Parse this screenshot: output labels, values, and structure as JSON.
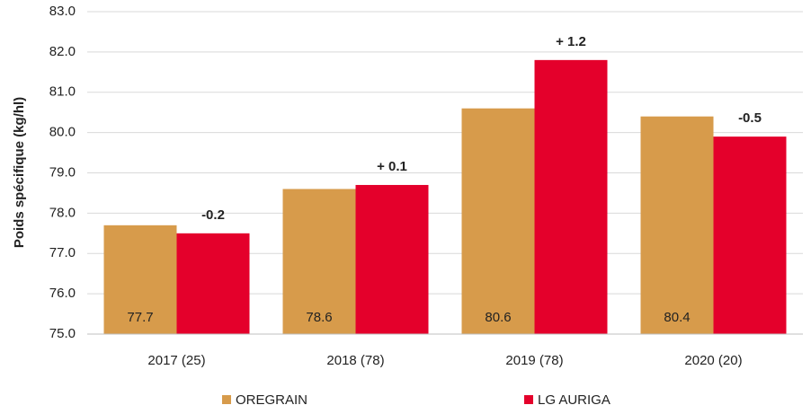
{
  "chart_data": {
    "type": "bar",
    "y_label": "Poids spécifique (kg/hl)",
    "categories": [
      "2017 (25)",
      "2018 (78)",
      "2019 (78)",
      "2020 (20)"
    ],
    "series": [
      {
        "name": "OREGRAIN",
        "color": "#d79b4b",
        "values": [
          77.7,
          78.6,
          80.6,
          80.4
        ]
      },
      {
        "name": "LG AURIGA",
        "color": "#e4002b",
        "values": [
          77.5,
          78.7,
          81.8,
          79.9
        ]
      }
    ],
    "annotations": [
      "-0.2",
      "+ 0.1",
      "+ 1.2",
      "-0.5"
    ],
    "ylim": [
      75,
      83
    ],
    "yticks": [
      {
        "value": 75,
        "label": "75.0"
      },
      {
        "value": 76,
        "label": "76.0"
      },
      {
        "value": 77,
        "label": "77.0"
      },
      {
        "value": 78,
        "label": "78.0"
      },
      {
        "value": 79,
        "label": "79.0"
      },
      {
        "value": 80,
        "label": "80.0"
      },
      {
        "value": 81,
        "label": "81.0"
      },
      {
        "value": 82,
        "label": "82.0"
      },
      {
        "value": 83,
        "label": "83.0"
      }
    ],
    "grid": true
  }
}
